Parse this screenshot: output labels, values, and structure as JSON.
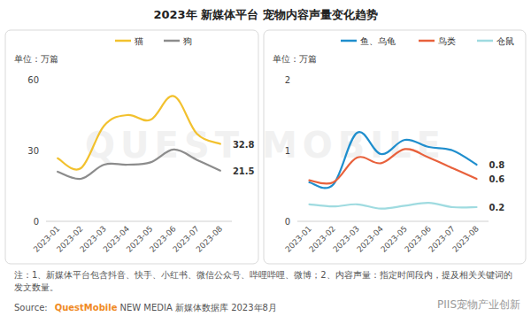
{
  "title": "2023年 新媒体平台 宠物内容声量变化趋势",
  "background_watermark": "QUEST MOBILE",
  "chart_data": [
    {
      "type": "line",
      "y_label": "单位：万篇",
      "categories": [
        "2023-01",
        "2023-02",
        "2023-03",
        "2023-04",
        "2023-05",
        "2023-06",
        "2023-07",
        "2023-08"
      ],
      "series": [
        {
          "name": "猫",
          "color": "#f2c12e",
          "values": [
            26.7,
            22.5,
            40.5,
            45,
            43,
            53,
            37,
            32.8
          ],
          "value_labels": [
            null,
            null,
            null,
            null,
            null,
            null,
            null,
            "32.8"
          ]
        },
        {
          "name": "狗",
          "color": "#8c8c8c",
          "values": [
            21,
            18,
            24,
            24,
            25,
            30.4,
            26,
            21.5
          ],
          "value_labels": [
            null,
            null,
            null,
            null,
            null,
            null,
            null,
            "21.5"
          ]
        }
      ],
      "ylim": [
        0,
        60
      ],
      "yticks": [
        0,
        30,
        60
      ],
      "grid": false,
      "legend": "top"
    },
    {
      "type": "line",
      "y_label": "单位：万篇",
      "categories": [
        "2023-01",
        "2023-02",
        "2023-03",
        "2023-04",
        "2023-05",
        "2023-06",
        "2023-07",
        "2023-08"
      ],
      "series": [
        {
          "name": "鱼、乌龟",
          "color": "#1f8ecd",
          "values": [
            0.55,
            0.52,
            1.25,
            0.95,
            1.15,
            1.05,
            1.0,
            0.8
          ],
          "value_labels": [
            null,
            null,
            null,
            null,
            null,
            null,
            null,
            "0.8"
          ]
        },
        {
          "name": "鸟类",
          "color": "#e8613c",
          "values": [
            0.58,
            0.55,
            0.9,
            0.82,
            1.02,
            0.9,
            0.75,
            0.6
          ],
          "value_labels": [
            null,
            null,
            null,
            null,
            null,
            null,
            null,
            "0.6"
          ]
        },
        {
          "name": "仓鼠",
          "color": "#9fdbe0",
          "values": [
            0.24,
            0.21,
            0.24,
            0.18,
            0.22,
            0.26,
            0.2,
            0.2
          ],
          "value_labels": [
            null,
            null,
            null,
            null,
            null,
            null,
            null,
            "0.2"
          ]
        }
      ],
      "ylim": [
        0,
        2
      ],
      "yticks": [
        0,
        1,
        2
      ],
      "grid": false,
      "legend": "top"
    }
  ],
  "notes": "注：1、新媒体平台包含抖音、快手、小红书、微信公众号、哔哩哔哩、微博；2、内容声量：指定时间段内，提及相关关键词的发文数量。",
  "source": {
    "label": "Source:",
    "brand": "QuestMobile",
    "text": "NEW MEDIA 新媒体数据库 2023年8月"
  },
  "watermark": "PIIS宠物产业创新"
}
